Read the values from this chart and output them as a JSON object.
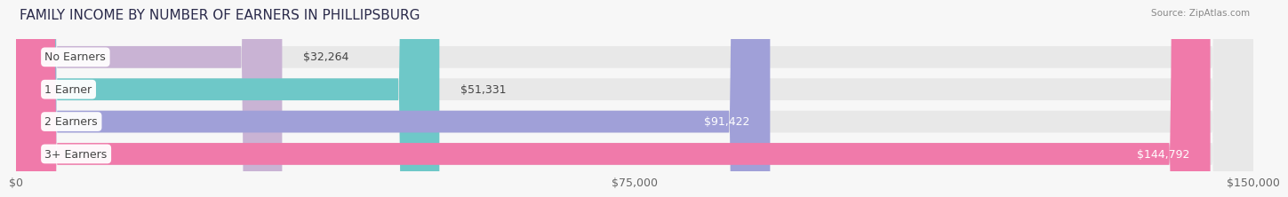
{
  "title": "FAMILY INCOME BY NUMBER OF EARNERS IN PHILLIPSBURG",
  "source": "Source: ZipAtlas.com",
  "categories": [
    "No Earners",
    "1 Earner",
    "2 Earners",
    "3+ Earners"
  ],
  "values": [
    32264,
    51331,
    91422,
    144792
  ],
  "bar_colors": [
    "#c9b3d4",
    "#6ec8c8",
    "#a0a0d8",
    "#f07aaa"
  ],
  "bar_bg_color": "#e8e8e8",
  "max_value": 150000,
  "xlim": [
    0,
    150000
  ],
  "xticks": [
    0,
    75000,
    150000
  ],
  "xtick_labels": [
    "$0",
    "$75,000",
    "$150,000"
  ],
  "label_fontsize": 9,
  "title_fontsize": 11,
  "value_label_threshold": 75000,
  "background_color": "#f7f7f7"
}
